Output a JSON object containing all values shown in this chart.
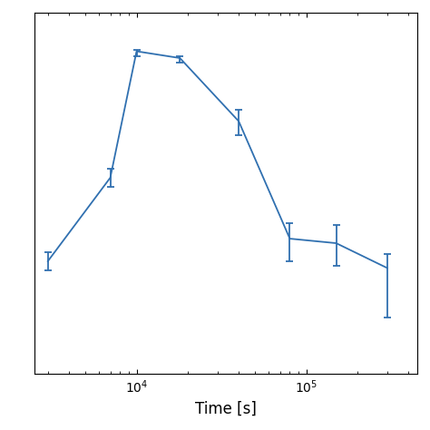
{
  "title": "",
  "xlabel": "Time [s]",
  "ylabel": "",
  "line_color": "#3070B0",
  "x": [
    3000,
    7000,
    10000,
    18000,
    40000,
    80000,
    150000,
    300000
  ],
  "y": [
    -0.05,
    0.32,
    0.88,
    0.85,
    0.57,
    0.05,
    0.03,
    -0.08
  ],
  "yerr_lo": [
    0.04,
    0.04,
    0.02,
    0.02,
    0.06,
    0.1,
    0.1,
    0.22
  ],
  "yerr_hi": [
    0.04,
    0.04,
    0.005,
    0.01,
    0.05,
    0.07,
    0.08,
    0.06
  ],
  "xlim": [
    2500,
    450000
  ],
  "ylim": [
    -0.55,
    1.05
  ],
  "figsize": [
    4.74,
    4.74
  ],
  "dpi": 100,
  "background_color": "#ffffff"
}
